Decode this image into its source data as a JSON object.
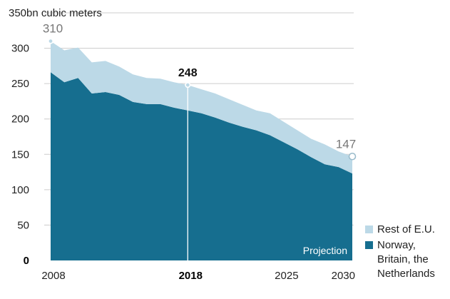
{
  "chart_data": {
    "type": "area",
    "stacked": true,
    "ylabel": "bn cubic meters",
    "ylim": [
      0,
      350
    ],
    "yticks": [
      0,
      50,
      100,
      150,
      200,
      250,
      300,
      350
    ],
    "y_top_label": "350bn cubic meters",
    "x_ticks": [
      2008,
      2018,
      2025,
      2030
    ],
    "x_tick_bold": 2018,
    "grid": true,
    "legend_position": "bottom-right",
    "projection_label": "Projection",
    "projection_start": 2018,
    "x": [
      2008,
      2009,
      2010,
      2011,
      2012,
      2013,
      2014,
      2015,
      2016,
      2017,
      2018,
      2019,
      2020,
      2021,
      2022,
      2023,
      2024,
      2025,
      2026,
      2027,
      2028,
      2029,
      2030
    ],
    "series": [
      {
        "name": "Norway, Britain, the Netherlands",
        "color": "#166e8f",
        "values": [
          266,
          252,
          258,
          236,
          238,
          234,
          224,
          221,
          221,
          216,
          212,
          208,
          202,
          195,
          189,
          184,
          177,
          167,
          157,
          146,
          136,
          132,
          123
        ]
      },
      {
        "name": "Rest of E.U.",
        "color": "#bcd9e7",
        "values": [
          44,
          45,
          43,
          44,
          44,
          40,
          39,
          37,
          36,
          36,
          36,
          34,
          34,
          33,
          31,
          28,
          31,
          29,
          27,
          26,
          28,
          22,
          24
        ]
      }
    ],
    "annotations": [
      {
        "x": 2008,
        "value": "310",
        "bold": false
      },
      {
        "x": 2018,
        "value": "248",
        "bold": true
      },
      {
        "x": 2030,
        "value": "147",
        "bold": false
      }
    ]
  }
}
